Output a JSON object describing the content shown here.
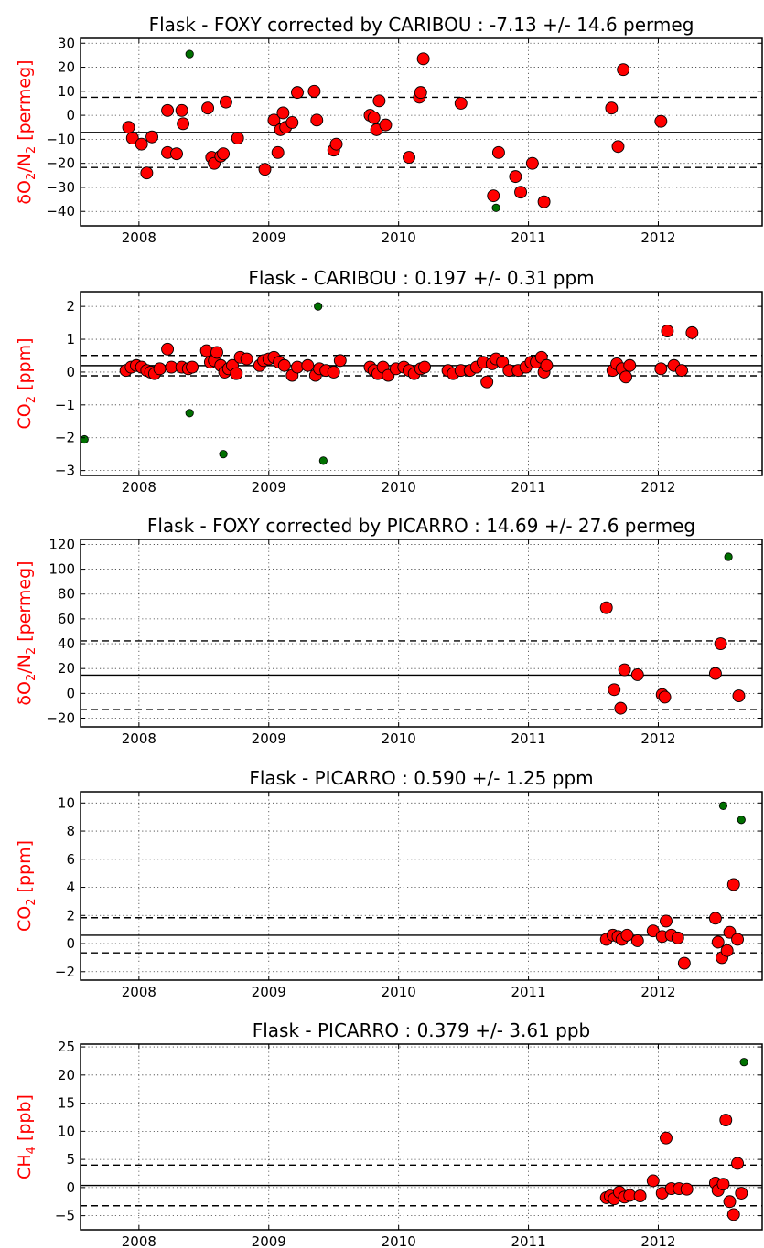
{
  "figure": {
    "domain": "Chart"
  },
  "colors": {
    "main_points": "#ff0000",
    "outlier_points": "#007000",
    "ylabel": "#ff0000"
  },
  "chart_data": [
    {
      "type": "scatter",
      "title": "Flask - FOXY corrected by CARIBOU : -7.13 +/- 14.6 permeg",
      "ylabel_main": "δO",
      "ylabel_sub1": "2",
      "ylabel_mid": "/N",
      "ylabel_sub2": "2",
      "ylabel_tail": " [permeg]",
      "xlim": [
        2007.55,
        2012.8
      ],
      "ylim": [
        -46,
        32
      ],
      "xticks": [
        2008,
        2009,
        2010,
        2011,
        2012
      ],
      "xticklabels": [
        "2008",
        "2009",
        "2010",
        "2011",
        "2012"
      ],
      "yticks": [
        -40,
        -30,
        -20,
        -10,
        0,
        10,
        20,
        30
      ],
      "yticklabels": [
        "−40",
        "−30",
        "−20",
        "−10",
        "0",
        "10",
        "20",
        "30"
      ],
      "mean": -7.13,
      "sd": 14.6,
      "series": [
        {
          "role": "main",
          "points": [
            [
              2007.92,
              -5
            ],
            [
              2007.95,
              -9.5
            ],
            [
              2008.02,
              -12
            ],
            [
              2008.06,
              -24
            ],
            [
              2008.1,
              -9
            ],
            [
              2008.22,
              2
            ],
            [
              2008.22,
              -15.5
            ],
            [
              2008.29,
              -16
            ],
            [
              2008.33,
              2
            ],
            [
              2008.34,
              -3.5
            ],
            [
              2008.53,
              3
            ],
            [
              2008.56,
              -17.5
            ],
            [
              2008.58,
              -20
            ],
            [
              2008.63,
              -17
            ],
            [
              2008.65,
              -16
            ],
            [
              2008.67,
              5.5
            ],
            [
              2008.76,
              -9.5
            ],
            [
              2008.97,
              -22.5
            ],
            [
              2009.04,
              -2
            ],
            [
              2009.07,
              -15.5
            ],
            [
              2009.09,
              -6
            ],
            [
              2009.11,
              1
            ],
            [
              2009.13,
              -5
            ],
            [
              2009.18,
              -3
            ],
            [
              2009.22,
              9.5
            ],
            [
              2009.35,
              10
            ],
            [
              2009.37,
              -2
            ],
            [
              2009.5,
              -14.5
            ],
            [
              2009.52,
              -12
            ],
            [
              2009.78,
              0
            ],
            [
              2009.81,
              -1
            ],
            [
              2009.83,
              -6
            ],
            [
              2009.85,
              6
            ],
            [
              2009.9,
              -4
            ],
            [
              2010.08,
              -17.5
            ],
            [
              2010.16,
              7.5
            ],
            [
              2010.17,
              9.5
            ],
            [
              2010.19,
              23.5
            ],
            [
              2010.48,
              5
            ],
            [
              2010.73,
              -33.5
            ],
            [
              2010.77,
              -15.5
            ],
            [
              2010.9,
              -25.5
            ],
            [
              2010.94,
              -32
            ],
            [
              2011.03,
              -20
            ],
            [
              2011.12,
              -36
            ],
            [
              2011.64,
              3
            ],
            [
              2011.69,
              -13
            ],
            [
              2011.73,
              19
            ],
            [
              2012.02,
              -2.5
            ]
          ]
        },
        {
          "role": "outlier",
          "points": [
            [
              2008.39,
              25.5
            ],
            [
              2010.75,
              -38.5
            ]
          ]
        }
      ]
    },
    {
      "type": "scatter",
      "title": "Flask - CARIBOU : 0.197 +/- 0.31 ppm",
      "ylabel_main": "CO",
      "ylabel_sub1": "2",
      "ylabel_mid": "",
      "ylabel_sub2": "",
      "ylabel_tail": " [ppm]",
      "xlim": [
        2007.55,
        2012.8
      ],
      "ylim": [
        -3.15,
        2.45
      ],
      "xticks": [
        2008,
        2009,
        2010,
        2011,
        2012
      ],
      "xticklabels": [
        "2008",
        "2009",
        "2010",
        "2011",
        "2012"
      ],
      "yticks": [
        -3,
        -2,
        -1,
        0,
        1,
        2
      ],
      "yticklabels": [
        "−3",
        "−2",
        "−1",
        "0",
        "1",
        "2"
      ],
      "mean": 0.197,
      "sd": 0.31,
      "series": [
        {
          "role": "main",
          "points": [
            [
              2007.9,
              0.05
            ],
            [
              2007.94,
              0.15
            ],
            [
              2007.98,
              0.2
            ],
            [
              2008.02,
              0.15
            ],
            [
              2008.06,
              0.05
            ],
            [
              2008.09,
              0.0
            ],
            [
              2008.12,
              -0.05
            ],
            [
              2008.16,
              0.1
            ],
            [
              2008.22,
              0.7
            ],
            [
              2008.25,
              0.15
            ],
            [
              2008.33,
              0.15
            ],
            [
              2008.38,
              0.1
            ],
            [
              2008.41,
              0.15
            ],
            [
              2008.52,
              0.65
            ],
            [
              2008.55,
              0.3
            ],
            [
              2008.58,
              0.35
            ],
            [
              2008.6,
              0.6
            ],
            [
              2008.63,
              0.2
            ],
            [
              2008.66,
              0.0
            ],
            [
              2008.69,
              0.1
            ],
            [
              2008.72,
              0.2
            ],
            [
              2008.75,
              -0.05
            ],
            [
              2008.78,
              0.45
            ],
            [
              2008.83,
              0.4
            ],
            [
              2008.93,
              0.2
            ],
            [
              2008.96,
              0.35
            ],
            [
              2009.0,
              0.4
            ],
            [
              2009.04,
              0.45
            ],
            [
              2009.08,
              0.3
            ],
            [
              2009.12,
              0.2
            ],
            [
              2009.18,
              -0.1
            ],
            [
              2009.22,
              0.15
            ],
            [
              2009.3,
              0.2
            ],
            [
              2009.36,
              -0.1
            ],
            [
              2009.39,
              0.1
            ],
            [
              2009.44,
              0.05
            ],
            [
              2009.5,
              0.0
            ],
            [
              2009.55,
              0.35
            ],
            [
              2009.78,
              0.15
            ],
            [
              2009.81,
              0.05
            ],
            [
              2009.84,
              -0.05
            ],
            [
              2009.88,
              0.15
            ],
            [
              2009.92,
              -0.1
            ],
            [
              2009.98,
              0.1
            ],
            [
              2010.04,
              0.15
            ],
            [
              2010.08,
              0.05
            ],
            [
              2010.12,
              -0.05
            ],
            [
              2010.17,
              0.1
            ],
            [
              2010.2,
              0.15
            ],
            [
              2010.38,
              0.05
            ],
            [
              2010.42,
              -0.05
            ],
            [
              2010.48,
              0.05
            ],
            [
              2010.55,
              0.05
            ],
            [
              2010.6,
              0.15
            ],
            [
              2010.65,
              0.3
            ],
            [
              2010.68,
              -0.3
            ],
            [
              2010.72,
              0.25
            ],
            [
              2010.75,
              0.4
            ],
            [
              2010.8,
              0.3
            ],
            [
              2010.85,
              0.05
            ],
            [
              2010.92,
              0.05
            ],
            [
              2010.98,
              0.15
            ],
            [
              2011.02,
              0.3
            ],
            [
              2011.06,
              0.3
            ],
            [
              2011.1,
              0.45
            ],
            [
              2011.12,
              0.0
            ],
            [
              2011.14,
              0.2
            ],
            [
              2011.65,
              0.05
            ],
            [
              2011.68,
              0.25
            ],
            [
              2011.72,
              0.1
            ],
            [
              2011.75,
              -0.15
            ],
            [
              2011.78,
              0.2
            ],
            [
              2012.02,
              0.1
            ],
            [
              2012.07,
              1.25
            ],
            [
              2012.12,
              0.2
            ],
            [
              2012.18,
              0.05
            ],
            [
              2012.26,
              1.2
            ]
          ]
        },
        {
          "role": "outlier",
          "points": [
            [
              2007.58,
              -2.05
            ],
            [
              2008.39,
              -1.25
            ],
            [
              2008.65,
              -2.5
            ],
            [
              2009.38,
              2.0
            ],
            [
              2009.42,
              -2.7
            ]
          ]
        }
      ]
    },
    {
      "type": "scatter",
      "title": "Flask - FOXY corrected by PICARRO : 14.69 +/- 27.6 permeg",
      "ylabel_main": "δO",
      "ylabel_sub1": "2",
      "ylabel_mid": "/N",
      "ylabel_sub2": "2",
      "ylabel_tail": " [permeg]",
      "xlim": [
        2007.55,
        2012.8
      ],
      "ylim": [
        -27,
        124
      ],
      "xticks": [
        2008,
        2009,
        2010,
        2011,
        2012
      ],
      "xticklabels": [
        "2008",
        "2009",
        "2010",
        "2011",
        "2012"
      ],
      "yticks": [
        -20,
        0,
        20,
        40,
        60,
        80,
        100,
        120
      ],
      "yticklabels": [
        "−20",
        "0",
        "20",
        "40",
        "60",
        "80",
        "100",
        "120"
      ],
      "mean": 14.69,
      "sd": 27.6,
      "series": [
        {
          "role": "main",
          "points": [
            [
              2011.6,
              69
            ],
            [
              2011.66,
              3
            ],
            [
              2011.71,
              -12
            ],
            [
              2011.74,
              19
            ],
            [
              2011.84,
              15
            ],
            [
              2012.03,
              -1
            ],
            [
              2012.05,
              -3
            ],
            [
              2012.44,
              16
            ],
            [
              2012.48,
              40
            ],
            [
              2012.62,
              -2
            ]
          ]
        },
        {
          "role": "outlier",
          "points": [
            [
              2012.54,
              110
            ]
          ]
        }
      ]
    },
    {
      "type": "scatter",
      "title": "Flask - PICARRO : 0.590 +/- 1.25 ppm",
      "ylabel_main": "CO",
      "ylabel_sub1": "2",
      "ylabel_mid": "",
      "ylabel_sub2": "",
      "ylabel_tail": " [ppm]",
      "xlim": [
        2007.55,
        2012.8
      ],
      "ylim": [
        -2.6,
        10.8
      ],
      "xticks": [
        2008,
        2009,
        2010,
        2011,
        2012
      ],
      "xticklabels": [
        "2008",
        "2009",
        "2010",
        "2011",
        "2012"
      ],
      "yticks": [
        -2,
        0,
        2,
        4,
        6,
        8,
        10
      ],
      "yticklabels": [
        "−2",
        "0",
        "2",
        "4",
        "6",
        "8",
        "10"
      ],
      "mean": 0.59,
      "sd": 1.25,
      "series": [
        {
          "role": "main",
          "points": [
            [
              2011.6,
              0.3
            ],
            [
              2011.65,
              0.6
            ],
            [
              2011.69,
              0.5
            ],
            [
              2011.72,
              0.3
            ],
            [
              2011.76,
              0.6
            ],
            [
              2011.84,
              0.2
            ],
            [
              2011.96,
              0.9
            ],
            [
              2012.03,
              0.5
            ],
            [
              2012.06,
              1.6
            ],
            [
              2012.1,
              0.6
            ],
            [
              2012.15,
              0.4
            ],
            [
              2012.2,
              -1.4
            ],
            [
              2012.44,
              1.8
            ],
            [
              2012.46,
              0.1
            ],
            [
              2012.49,
              -1.0
            ],
            [
              2012.53,
              -0.5
            ],
            [
              2012.55,
              0.8
            ],
            [
              2012.58,
              4.2
            ],
            [
              2012.61,
              0.3
            ]
          ]
        },
        {
          "role": "outlier",
          "points": [
            [
              2012.5,
              9.8
            ],
            [
              2012.64,
              8.8
            ]
          ]
        }
      ]
    },
    {
      "type": "scatter",
      "title": "Flask - PICARRO : 0.379 +/- 3.61 ppb",
      "ylabel_main": "CH",
      "ylabel_sub1": "4",
      "ylabel_mid": "",
      "ylabel_sub2": "",
      "ylabel_tail": " [ppb]",
      "xlim": [
        2007.55,
        2012.8
      ],
      "ylim": [
        -7.5,
        25.5
      ],
      "xticks": [
        2008,
        2009,
        2010,
        2011,
        2012
      ],
      "xticklabels": [
        "2008",
        "2009",
        "2010",
        "2011",
        "2012"
      ],
      "yticks": [
        -5,
        0,
        5,
        10,
        15,
        20,
        25
      ],
      "yticklabels": [
        "−5",
        "0",
        "5",
        "10",
        "15",
        "20",
        "25"
      ],
      "mean": 0.379,
      "sd": 3.61,
      "series": [
        {
          "role": "main",
          "points": [
            [
              2011.6,
              -1.8
            ],
            [
              2011.63,
              -1.5
            ],
            [
              2011.66,
              -2.0
            ],
            [
              2011.7,
              -0.8
            ],
            [
              2011.74,
              -1.7
            ],
            [
              2011.78,
              -1.4
            ],
            [
              2011.86,
              -1.5
            ],
            [
              2011.96,
              1.2
            ],
            [
              2012.03,
              -1.0
            ],
            [
              2012.06,
              8.8
            ],
            [
              2012.1,
              -0.2
            ],
            [
              2012.16,
              -0.2
            ],
            [
              2012.22,
              -0.3
            ],
            [
              2012.44,
              0.8
            ],
            [
              2012.46,
              -0.5
            ],
            [
              2012.5,
              0.6
            ],
            [
              2012.52,
              12
            ],
            [
              2012.55,
              -2.5
            ],
            [
              2012.58,
              -4.8
            ],
            [
              2012.61,
              4.3
            ],
            [
              2012.64,
              -1.0
            ]
          ]
        },
        {
          "role": "outlier",
          "points": [
            [
              2012.66,
              22.3
            ]
          ]
        }
      ]
    }
  ]
}
